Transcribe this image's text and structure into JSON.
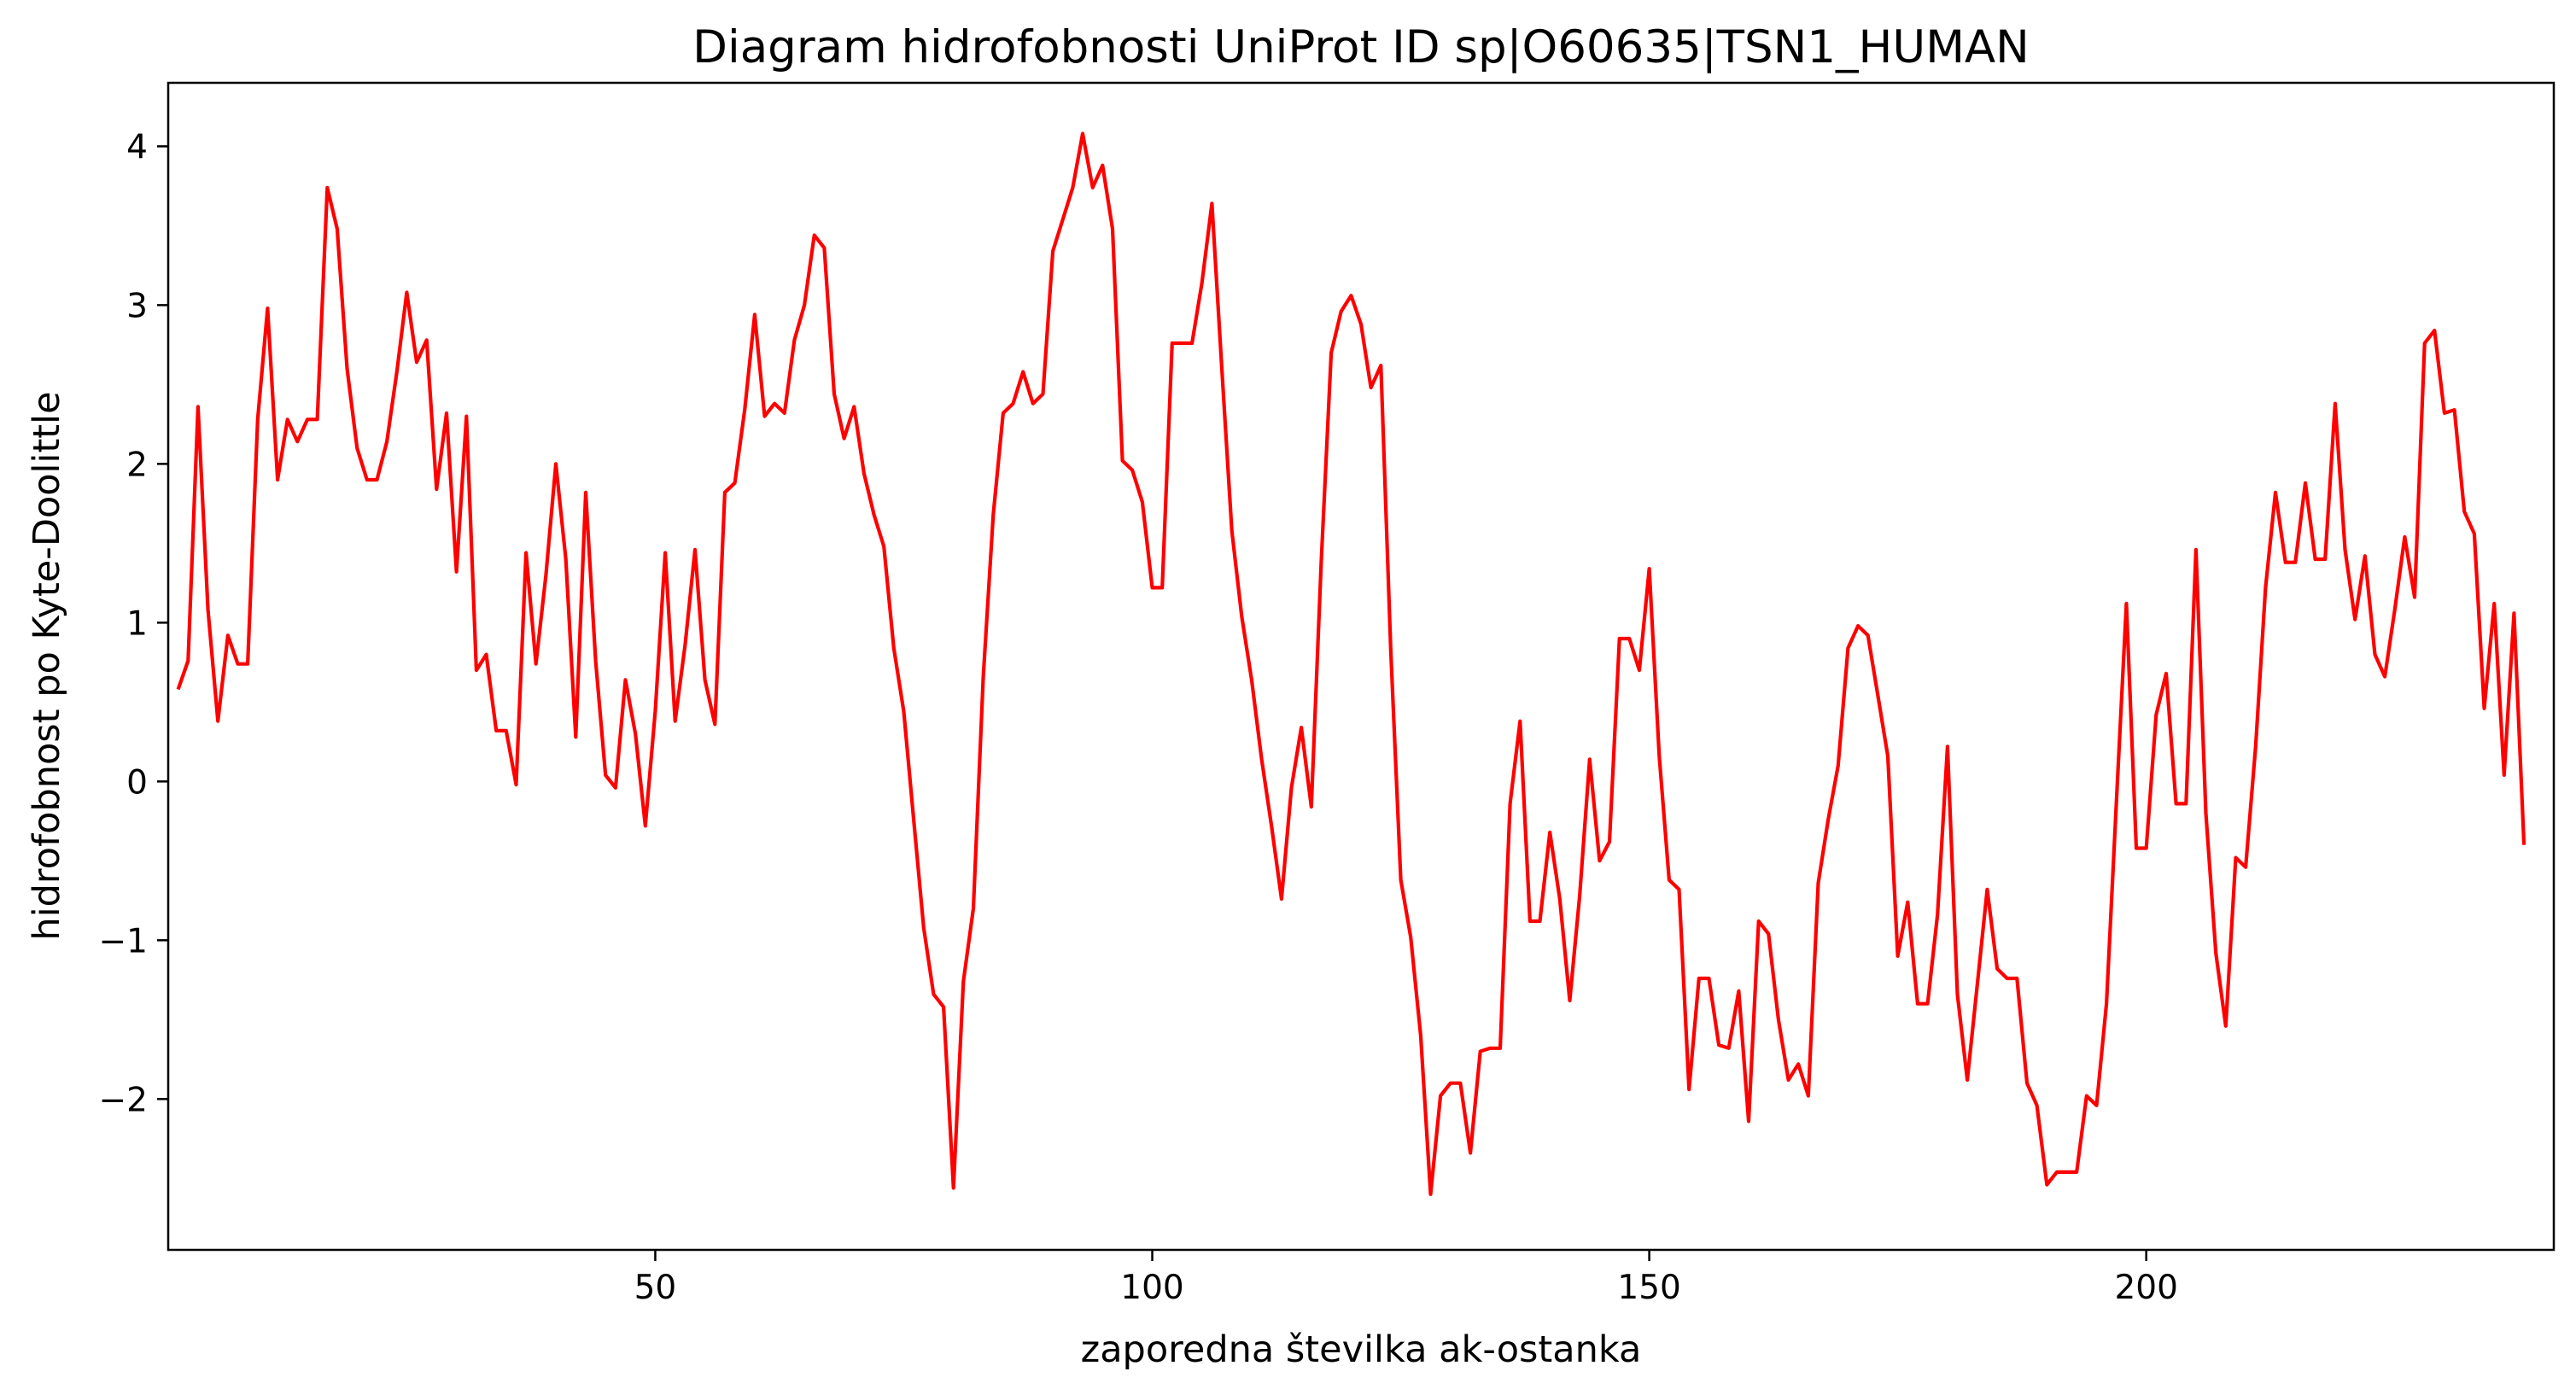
{
  "chart_data": {
    "type": "line",
    "title": "Diagram hidrofobnosti UniProt ID sp|O60635|TSN1_HUMAN",
    "xlabel": "zaporedna številka ak-ostanka",
    "ylabel": "hidrofobnost po Kyte-Doolittle",
    "xlim": [
      1,
      241
    ],
    "ylim": [
      -2.95,
      4.4
    ],
    "xticks": [
      50,
      100,
      150,
      200
    ],
    "yticks": [
      -2,
      -1,
      0,
      1,
      2,
      3,
      4
    ],
    "xtick_labels": [
      "50",
      "100",
      "150",
      "200"
    ],
    "ytick_labels": [
      "−2",
      "−1",
      "0",
      "1",
      "2",
      "3",
      "4"
    ],
    "grid": false,
    "legend": "none",
    "line_color": "#ff0000",
    "x_start": 2,
    "series": [
      {
        "values": [
          0.58,
          0.76,
          2.36,
          1.08,
          0.38,
          0.92,
          0.74,
          0.74,
          2.28,
          2.98,
          1.9,
          2.28,
          2.14,
          2.28,
          2.28,
          3.74,
          3.48,
          2.6,
          2.1,
          1.9,
          1.9,
          2.14,
          2.58,
          3.08,
          2.64,
          2.78,
          1.84,
          2.32,
          1.32,
          2.3,
          0.7,
          0.8,
          0.32,
          0.32,
          -0.02,
          1.44,
          0.74,
          1.3,
          2.0,
          1.4,
          0.28,
          1.82,
          0.76,
          0.04,
          -0.04,
          0.64,
          0.3,
          -0.28,
          0.44,
          1.44,
          0.38,
          0.86,
          1.46,
          0.64,
          0.36,
          1.82,
          1.88,
          2.34,
          2.94,
          2.3,
          2.38,
          2.32,
          2.78,
          3.0,
          3.44,
          3.36,
          2.44,
          2.16,
          2.36,
          1.94,
          1.68,
          1.48,
          0.84,
          0.44,
          -0.24,
          -0.92,
          -1.34,
          -1.42,
          -2.56,
          -1.26,
          -0.8,
          0.66,
          1.68,
          2.32,
          2.38,
          2.58,
          2.38,
          2.44,
          3.34,
          3.54,
          3.74,
          4.08,
          3.74,
          3.88,
          3.48,
          2.02,
          1.96,
          1.76,
          1.22,
          1.22,
          2.76,
          2.76,
          2.76,
          3.14,
          3.64,
          2.6,
          1.58,
          1.04,
          0.64,
          0.14,
          -0.28,
          -0.74,
          -0.04,
          0.34,
          -0.16,
          1.38,
          2.7,
          2.96,
          3.06,
          2.88,
          2.48,
          2.62,
          0.82,
          -0.62,
          -0.98,
          -1.6,
          -2.6,
          -1.98,
          -1.9,
          -1.9,
          -2.34,
          -1.7,
          -1.68,
          -1.68,
          -0.14,
          0.38,
          -0.88,
          -0.88,
          -0.32,
          -0.74,
          -1.38,
          -0.72,
          0.14,
          -0.5,
          -0.38,
          0.9,
          0.9,
          0.7,
          1.34,
          0.16,
          -0.62,
          -0.68,
          -1.94,
          -1.24,
          -1.24,
          -1.66,
          -1.68,
          -1.32,
          -2.14,
          -0.88,
          -0.96,
          -1.5,
          -1.88,
          -1.78,
          -1.98,
          -0.64,
          -0.24,
          0.1,
          0.84,
          0.98,
          0.92,
          0.54,
          0.16,
          -1.1,
          -0.76,
          -1.4,
          -1.4,
          -0.84,
          0.22,
          -1.34,
          -1.88,
          -1.28,
          -0.68,
          -1.18,
          -1.24,
          -1.24,
          -1.9,
          -2.04,
          -2.54,
          -2.46,
          -2.46,
          -2.46,
          -1.98,
          -2.04,
          -1.4,
          -0.12,
          1.12,
          -0.42,
          -0.42,
          0.42,
          0.68,
          -0.14,
          -0.14,
          1.46,
          -0.2,
          -1.08,
          -1.54,
          -0.48,
          -0.54,
          0.22,
          1.22,
          1.82,
          1.38,
          1.38,
          1.88,
          1.4,
          1.4,
          2.38,
          1.46,
          1.02,
          1.42,
          0.8,
          0.66,
          1.08,
          1.54,
          1.16,
          2.76,
          2.84,
          2.32,
          2.34,
          1.7,
          1.56,
          0.46,
          1.12,
          0.04,
          1.06,
          -0.4
        ]
      }
    ]
  }
}
